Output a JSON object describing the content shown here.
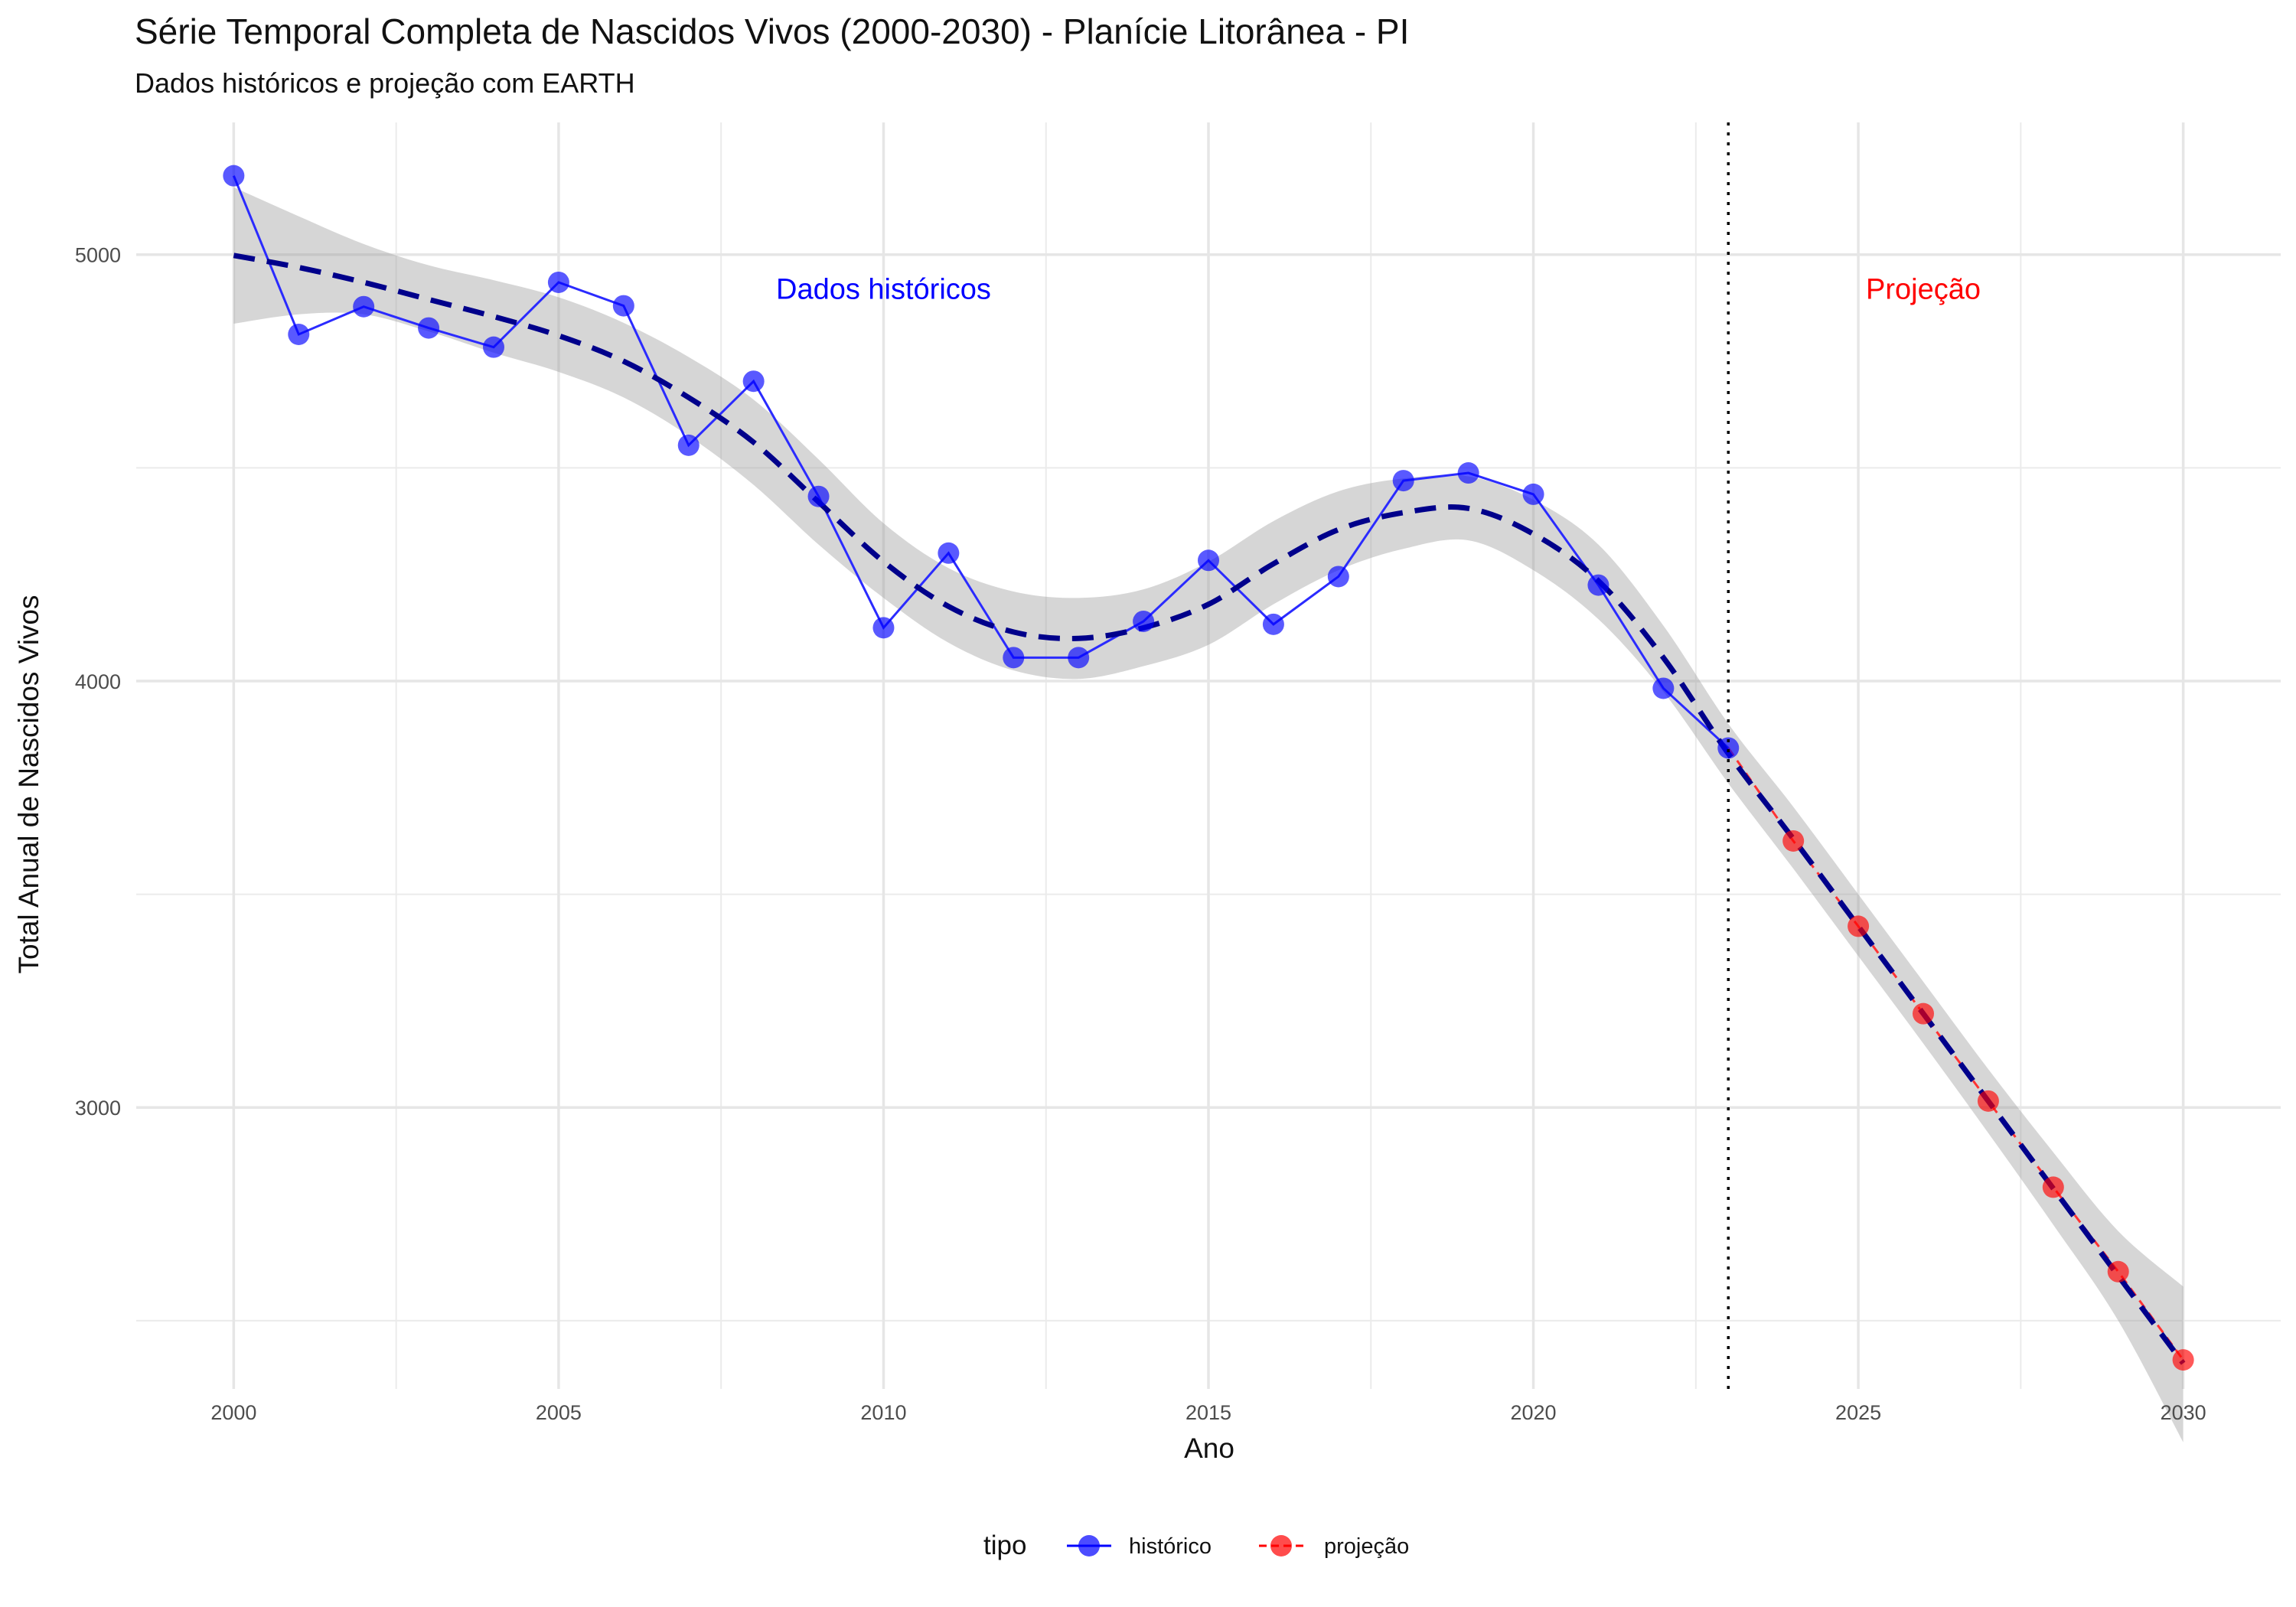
{
  "chart_data": {
    "type": "line",
    "title": "Série Temporal Completa de Nascidos Vivos (2000-2030) -  Planície Litorânea - PI",
    "subtitle": "Dados históricos e projeção com EARTH",
    "xlabel": "Ano",
    "ylabel": "Total Anual de Nascidos Vivos",
    "xlim": [
      1998.5,
      2031.5
    ],
    "ylim": [
      2340,
      5310
    ],
    "x_ticks": [
      2000,
      2005,
      2010,
      2015,
      2020,
      2025,
      2030
    ],
    "y_ticks": [
      3000,
      4000,
      5000
    ],
    "grid": true,
    "vline": {
      "x": 2023,
      "style": "dotted",
      "color": "#000000"
    },
    "annotations": [
      {
        "text": "Dados históricos",
        "x": 2010,
        "y": 4920,
        "color": "#0000ff"
      },
      {
        "text": "Projeção",
        "x": 2026,
        "y": 4920,
        "color": "#ff0000"
      }
    ],
    "legend": {
      "title": "tipo",
      "position": "bottom",
      "entries": [
        {
          "label": "histórico",
          "color": "#0000ff"
        },
        {
          "label": "projeção",
          "color": "#ff0000"
        }
      ]
    },
    "series": [
      {
        "name": "histórico",
        "color": "#2b2bff",
        "x": [
          2000,
          2001,
          2002,
          2003,
          2004,
          2005,
          2006,
          2007,
          2008,
          2009,
          2010,
          2011,
          2012,
          2013,
          2014,
          2015,
          2016,
          2017,
          2018,
          2019,
          2020,
          2021,
          2022,
          2023
        ],
        "y": [
          5185,
          4813,
          4878,
          4828,
          4783,
          4935,
          4880,
          4553,
          4703,
          4433,
          4125,
          4300,
          4055,
          4055,
          4140,
          4283,
          4133,
          4245,
          4470,
          4488,
          4438,
          4225,
          3983,
          3843
        ]
      },
      {
        "name": "projeção",
        "color": "#ff3333",
        "x": [
          2023,
          2024,
          2025,
          2026,
          2027,
          2028,
          2029,
          2030
        ],
        "y": [
          3843,
          3625,
          3425,
          3220,
          3015,
          2813,
          2615,
          2408
        ]
      }
    ],
    "trend": {
      "style": "dashed",
      "color": "#00008b",
      "x": [
        2000,
        2001,
        2002,
        2003,
        2004,
        2005,
        2006,
        2007,
        2008,
        2009,
        2010,
        2011,
        2012,
        2013,
        2014,
        2015,
        2016,
        2017,
        2018,
        2019,
        2020,
        2021,
        2022,
        2023,
        2024,
        2025,
        2026,
        2027,
        2028,
        2029,
        2030
      ],
      "y": [
        4998,
        4970,
        4935,
        4895,
        4855,
        4810,
        4750,
        4665,
        4560,
        4420,
        4280,
        4175,
        4115,
        4100,
        4125,
        4180,
        4275,
        4355,
        4395,
        4405,
        4345,
        4235,
        4055,
        3830,
        3630,
        3425,
        3220,
        3015,
        2810,
        2605,
        2400
      ],
      "lower": [
        4838,
        4860,
        4860,
        4820,
        4770,
        4725,
        4665,
        4575,
        4460,
        4320,
        4195,
        4090,
        4025,
        4005,
        4035,
        4085,
        4180,
        4260,
        4310,
        4330,
        4260,
        4145,
        3975,
        3760,
        3560,
        3355,
        3150,
        2940,
        2725,
        2500,
        2215
      ],
      "upper": [
        5158,
        5090,
        5025,
        4975,
        4940,
        4900,
        4840,
        4760,
        4660,
        4520,
        4370,
        4265,
        4210,
        4195,
        4215,
        4280,
        4375,
        4445,
        4475,
        4480,
        4425,
        4320,
        4130,
        3900,
        3705,
        3500,
        3295,
        3090,
        2895,
        2710,
        2580
      ]
    }
  }
}
